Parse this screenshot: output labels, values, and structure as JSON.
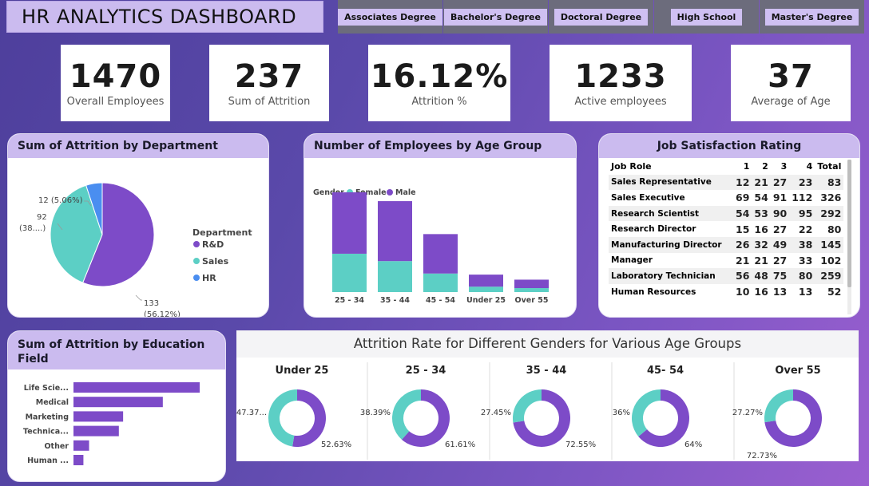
{
  "title": "HR ANALYTICS DASHBOARD",
  "slicers": [
    "Associates Degree",
    "Bachelor's Degree",
    "Doctoral Degree",
    "High School",
    "Master's Degree"
  ],
  "kpis": [
    {
      "value": "1470",
      "label": "Overall Employees"
    },
    {
      "value": "237",
      "label": "Sum of Attrition"
    },
    {
      "value": "16.12%",
      "label": "Attrition %"
    },
    {
      "value": "1233",
      "label": "Active employees"
    },
    {
      "value": "37",
      "label": "Average of Age"
    }
  ],
  "colors": {
    "purple": "#7d4bc8",
    "teal": "#5ccfc5",
    "blue": "#4a8ef0",
    "header": "#cbbbef"
  },
  "dept_chart": {
    "title": "Sum of Attrition by Department",
    "legend_title": "Department",
    "labels": {
      "rd": "133\n(56.12%)",
      "sales": "92\n(38....)",
      "hr": "12 (5.06%)"
    },
    "label_rd_1": "133",
    "label_rd_2": "(56.12%)",
    "label_sales_1": "92",
    "label_sales_2": "(38....)",
    "label_hr": "12 (5.06%)"
  },
  "age_chart": {
    "title": "Number of Employees by Age Group",
    "legend_title": "Gender",
    "legend_female": "Female",
    "legend_male": "Male"
  },
  "job_sat": {
    "title": "Job Satisfaction Rating",
    "headers": [
      "Job Role",
      "1",
      "2",
      "3",
      "4",
      "Total"
    ],
    "rows": [
      [
        "Sales Representative",
        "12",
        "21",
        "27",
        "23",
        "83"
      ],
      [
        "Sales Executive",
        "69",
        "54",
        "91",
        "112",
        "326"
      ],
      [
        "Research Scientist",
        "54",
        "53",
        "90",
        "95",
        "292"
      ],
      [
        "Research Director",
        "15",
        "16",
        "27",
        "22",
        "80"
      ],
      [
        "Manufacturing Director",
        "26",
        "32",
        "49",
        "38",
        "145"
      ],
      [
        "Manager",
        "21",
        "21",
        "27",
        "33",
        "102"
      ],
      [
        "Laboratory Technician",
        "56",
        "48",
        "75",
        "80",
        "259"
      ],
      [
        "Human Resources",
        "10",
        "16",
        "13",
        "13",
        "52"
      ]
    ]
  },
  "edu_chart": {
    "title_line1": "Sum of Attrition by Education",
    "title_line2": "Field"
  },
  "gender_age": {
    "title": "Attrition Rate for Different Genders for Various Age Groups"
  },
  "chart_data": [
    {
      "type": "pie",
      "title": "Sum of Attrition by Department",
      "legend_title": "Department",
      "categories": [
        "R&D",
        "Sales",
        "HR"
      ],
      "values": [
        133,
        92,
        12
      ],
      "percentages": [
        56.12,
        38.82,
        5.06
      ]
    },
    {
      "type": "bar",
      "stacked": true,
      "title": "Number of Employees by Age Group",
      "legend_title": "Gender",
      "categories": [
        "25 - 34",
        "35 - 44",
        "45 - 54",
        "Under 25",
        "Over 55"
      ],
      "series": [
        {
          "name": "Female",
          "values": [
            213,
            172,
            103,
            30,
            22
          ]
        },
        {
          "name": "Male",
          "values": [
            341,
            333,
            219,
            67,
            47
          ]
        }
      ]
    },
    {
      "type": "bar",
      "orientation": "horizontal",
      "title": "Sum of Attrition by Education Field",
      "categories": [
        "Life Scie...",
        "Medical",
        "Marketing",
        "Technica...",
        "Other",
        "Human ..."
      ],
      "values": [
        89,
        63,
        35,
        32,
        11,
        7
      ]
    },
    {
      "type": "pie",
      "variant": "donut",
      "title": "Attrition Rate for Different Genders for Various Age Groups",
      "groups": [
        {
          "name": "Under 25",
          "female": 47.37,
          "male": 52.63,
          "female_label": "47.37...",
          "male_label": "52.63%"
        },
        {
          "name": "25 - 34",
          "female": 38.39,
          "male": 61.61,
          "female_label": "38.39%",
          "male_label": "61.61%"
        },
        {
          "name": "35 - 44",
          "female": 27.45,
          "male": 72.55,
          "female_label": "27.45%",
          "male_label": "72.55%"
        },
        {
          "name": "45- 54",
          "female": 36,
          "male": 64,
          "female_label": "36%",
          "male_label": "64%"
        },
        {
          "name": "Over 55",
          "female": 27.27,
          "male": 72.73,
          "female_label": "27.27%",
          "male_label": "72.73%"
        }
      ]
    }
  ]
}
